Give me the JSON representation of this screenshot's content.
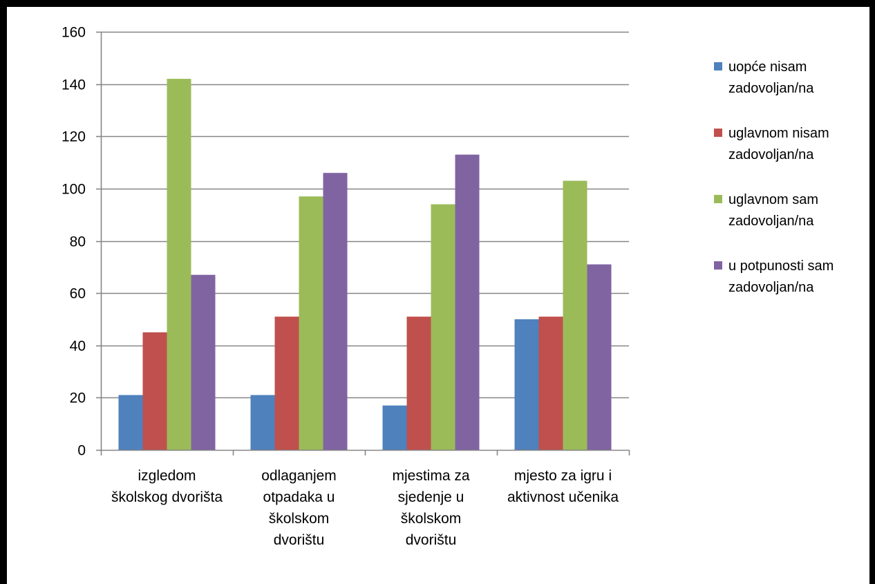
{
  "chart_data": {
    "type": "bar",
    "title": "",
    "xlabel": "",
    "ylabel": "",
    "ylim": [
      0,
      160
    ],
    "yticks": [
      "0",
      "20",
      "40",
      "60",
      "80",
      "100",
      "120",
      "140",
      "160"
    ],
    "grid": true,
    "legend_position": "right",
    "categories": [
      [
        "izgledom",
        "školskog dvorišta"
      ],
      [
        "odlaganjem",
        "otpadaka u",
        "školskom",
        "dvorištu"
      ],
      [
        "mjestima za",
        "sjedenje u",
        "školskom",
        "dvorištu"
      ],
      [
        "mjesto za igru i",
        "aktivnost učenika"
      ]
    ],
    "series": [
      {
        "name": [
          "uopće nisam",
          "zadovoljan/na"
        ],
        "color": "#4F81BD",
        "values": [
          21,
          21,
          17,
          50
        ]
      },
      {
        "name": [
          "uglavnom nisam",
          "zadovoljan/na"
        ],
        "color": "#C0504D",
        "values": [
          45,
          51,
          51,
          51
        ]
      },
      {
        "name": [
          "uglavnom sam",
          "zadovoljan/na"
        ],
        "color": "#9BBB59",
        "values": [
          142,
          97,
          94,
          103
        ]
      },
      {
        "name": [
          "u potpunosti sam",
          "zadovoljan/na"
        ],
        "color": "#8064A2",
        "values": [
          67,
          106,
          113,
          71
        ]
      }
    ]
  }
}
